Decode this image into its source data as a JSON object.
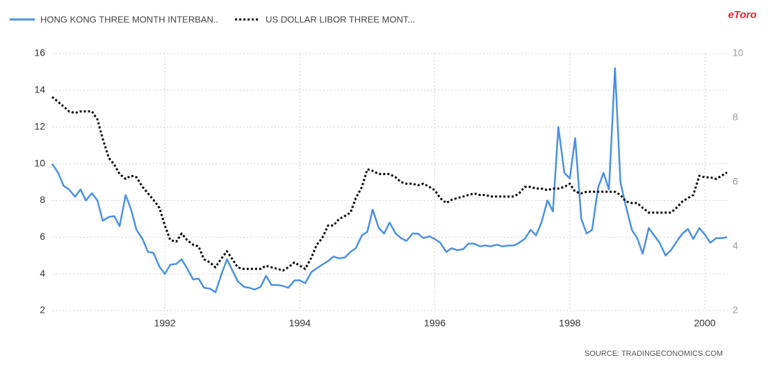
{
  "chart_data": {
    "type": "line",
    "x": [
      1990.33,
      1990.42,
      1990.5,
      1990.58,
      1990.67,
      1990.75,
      1990.83,
      1990.92,
      1991,
      1991.08,
      1991.17,
      1991.25,
      1991.33,
      1991.42,
      1991.5,
      1991.58,
      1991.67,
      1991.75,
      1991.83,
      1991.92,
      1992,
      1992.08,
      1992.17,
      1992.25,
      1992.33,
      1992.42,
      1992.5,
      1992.58,
      1992.67,
      1992.75,
      1992.83,
      1992.92,
      1993,
      1993.08,
      1993.17,
      1993.25,
      1993.33,
      1993.42,
      1993.5,
      1993.58,
      1993.67,
      1993.75,
      1993.83,
      1993.92,
      1994,
      1994.08,
      1994.17,
      1994.25,
      1994.33,
      1994.42,
      1994.5,
      1994.58,
      1994.67,
      1994.75,
      1994.83,
      1994.92,
      1995,
      1995.08,
      1995.17,
      1995.25,
      1995.33,
      1995.42,
      1995.5,
      1995.58,
      1995.67,
      1995.75,
      1995.83,
      1995.92,
      1996,
      1996.08,
      1996.17,
      1996.25,
      1996.33,
      1996.42,
      1996.5,
      1996.58,
      1996.67,
      1996.75,
      1996.83,
      1996.92,
      1997,
      1997.08,
      1997.17,
      1997.25,
      1997.33,
      1997.42,
      1997.5,
      1997.58,
      1997.67,
      1997.75,
      1997.83,
      1997.92,
      1998,
      1998.08,
      1998.17,
      1998.25,
      1998.33,
      1998.42,
      1998.5,
      1998.58,
      1998.67,
      1998.75,
      1998.83,
      1998.92,
      1999,
      1999.08,
      1999.17,
      1999.25,
      1999.33,
      1999.42,
      1999.5,
      1999.58,
      1999.67,
      1999.75,
      1999.83,
      1999.92,
      2000,
      2000.08,
      2000.17,
      2000.25,
      2000.33
    ],
    "xlim": [
      1990.33,
      2000.33
    ],
    "xticks": [
      1992,
      1994,
      1996,
      1998,
      2000
    ],
    "ylim": [
      2,
      16
    ],
    "yticks": [
      2,
      4,
      6,
      8,
      10,
      12,
      14,
      16
    ],
    "y2lim": [
      2,
      10
    ],
    "y2ticks": [
      2,
      4,
      6,
      8,
      10
    ],
    "grid": true,
    "legend": "top-left",
    "series": [
      {
        "name": "HONG KONG THREE MONTH INTERBAN..",
        "color": "#4a90e2",
        "style": "solid",
        "values": [
          10.0,
          9.5,
          8.8,
          8.6,
          8.2,
          8.6,
          8.0,
          8.4,
          8.0,
          6.9,
          7.1,
          7.15,
          6.6,
          8.3,
          7.5,
          6.4,
          5.9,
          5.2,
          5.15,
          4.4,
          4.0,
          4.5,
          4.55,
          4.8,
          4.3,
          3.7,
          3.75,
          3.25,
          3.2,
          3.0,
          3.9,
          4.8,
          4.2,
          3.6,
          3.3,
          3.25,
          3.15,
          3.3,
          3.9,
          3.4,
          3.4,
          3.35,
          3.25,
          3.65,
          3.65,
          3.5,
          4.1,
          4.3,
          4.5,
          4.7,
          4.95,
          4.85,
          4.9,
          5.2,
          5.4,
          6.1,
          6.3,
          7.5,
          6.5,
          6.2,
          6.8,
          6.2,
          5.95,
          5.8,
          6.2,
          6.2,
          5.95,
          6.05,
          5.9,
          5.7,
          5.2,
          5.4,
          5.3,
          5.35,
          5.65,
          5.65,
          5.5,
          5.55,
          5.5,
          5.6,
          5.5,
          5.55,
          5.55,
          5.7,
          5.9,
          6.4,
          6.1,
          6.8,
          8.0,
          7.4,
          12.0,
          9.5,
          9.2,
          11.4,
          7.0,
          6.2,
          6.4,
          8.7,
          9.5,
          8.6,
          15.2,
          9.0,
          7.7,
          6.4,
          5.95,
          5.1,
          6.5,
          6.1,
          5.7,
          5.0,
          5.3,
          5.75,
          6.2,
          6.45,
          5.9,
          6.5,
          6.15,
          5.7,
          5.95,
          5.95,
          6.0
        ]
      },
      {
        "name": "US DOLLAR LIBOR THREE MONT...",
        "color": "#000000",
        "style": "dotted",
        "axis": "y2",
        "values": [
          8.65,
          8.5,
          8.35,
          8.2,
          8.15,
          8.2,
          8.2,
          8.2,
          7.95,
          7.35,
          6.75,
          6.55,
          6.25,
          6.1,
          6.2,
          6.15,
          5.85,
          5.65,
          5.45,
          5.2,
          4.65,
          4.2,
          4.15,
          4.4,
          4.2,
          4.05,
          4.0,
          3.6,
          3.5,
          3.35,
          3.6,
          3.85,
          3.6,
          3.35,
          3.3,
          3.3,
          3.3,
          3.3,
          3.4,
          3.35,
          3.3,
          3.25,
          3.35,
          3.5,
          3.4,
          3.3,
          3.65,
          4.05,
          4.25,
          4.65,
          4.65,
          4.85,
          4.95,
          5.05,
          5.5,
          5.85,
          6.4,
          6.35,
          6.25,
          6.25,
          6.25,
          6.15,
          6.0,
          5.95,
          5.95,
          5.9,
          5.95,
          5.85,
          5.75,
          5.5,
          5.35,
          5.45,
          5.5,
          5.55,
          5.6,
          5.65,
          5.6,
          5.6,
          5.55,
          5.55,
          5.55,
          5.55,
          5.55,
          5.65,
          5.85,
          5.85,
          5.8,
          5.8,
          5.75,
          5.8,
          5.8,
          5.85,
          5.95,
          5.7,
          5.65,
          5.7,
          5.7,
          5.7,
          5.7,
          5.7,
          5.7,
          5.6,
          5.4,
          5.35,
          5.35,
          5.2,
          5.05,
          5.05,
          5.05,
          5.05,
          5.05,
          5.2,
          5.4,
          5.5,
          5.6,
          6.2,
          6.15,
          6.15,
          6.1,
          6.2,
          6.3
        ]
      }
    ],
    "source": "SOURCE: TRADINGECONOMICS.COM"
  },
  "logo": "eToro"
}
